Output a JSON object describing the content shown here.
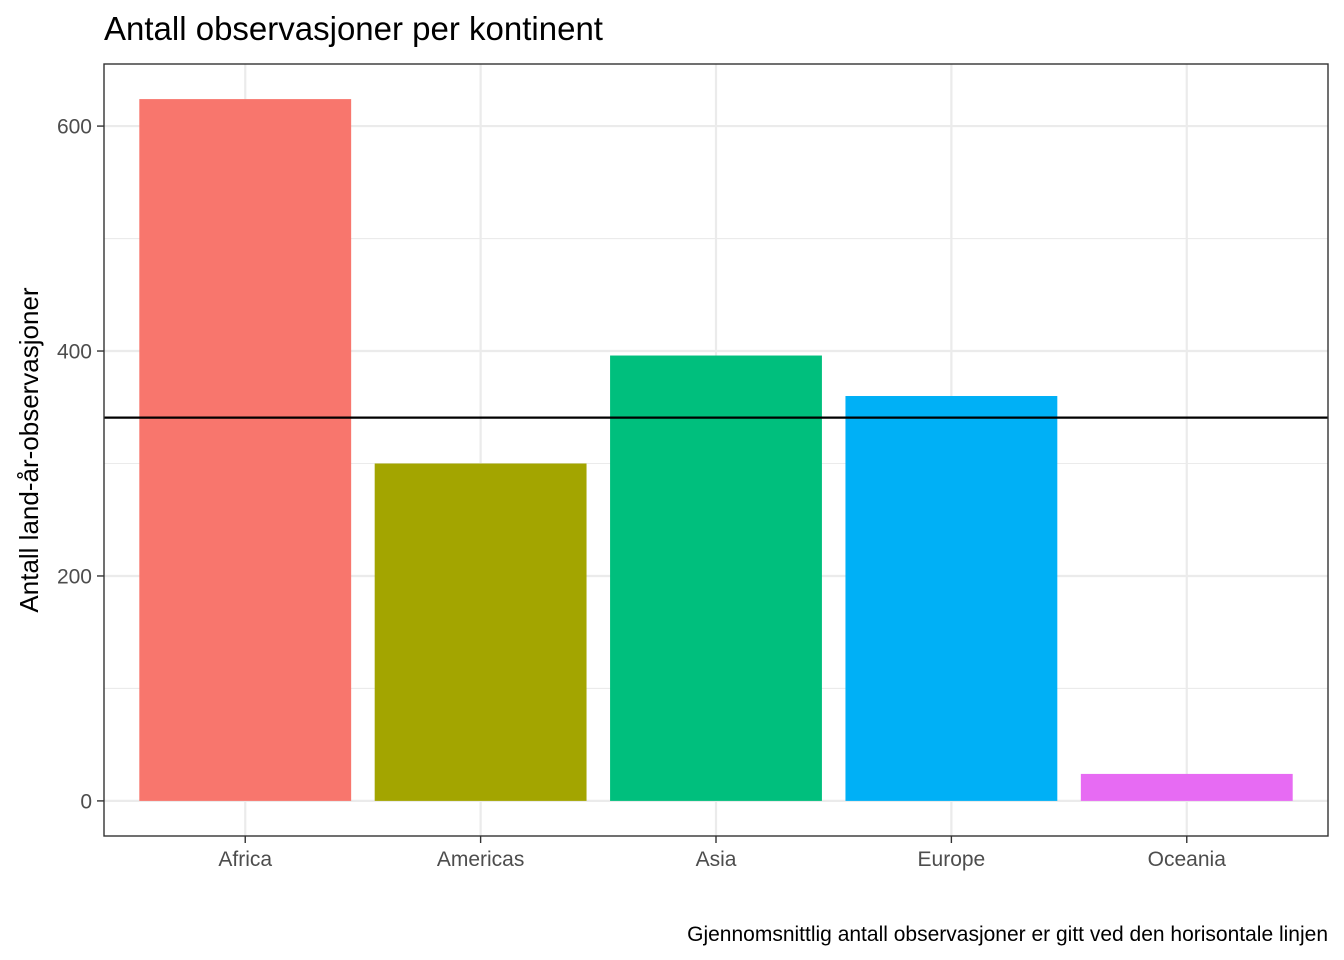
{
  "chart_data": {
    "type": "bar",
    "title": "Antall observasjoner per kontinent",
    "ylabel": "Antall land-år-observasjoner",
    "xlabel": "",
    "caption": "Gjennomsnittlig antall observasjoner er gitt ved den horisontale linjen",
    "categories": [
      "Africa",
      "Americas",
      "Asia",
      "Europe",
      "Oceania"
    ],
    "values": [
      624,
      300,
      396,
      360,
      24
    ],
    "colors": [
      "#F8766D",
      "#A3A500",
      "#00BF7D",
      "#00B0F6",
      "#E76BF3"
    ],
    "reference_line": {
      "value": 340.8,
      "orientation": "horizontal",
      "color": "#000000"
    },
    "ylim": [
      -31.2,
      655.2
    ],
    "y_ticks": [
      0,
      200,
      400,
      600
    ],
    "y_minor_ticks": [
      100,
      300,
      500
    ],
    "grid": true,
    "legend": "none"
  }
}
